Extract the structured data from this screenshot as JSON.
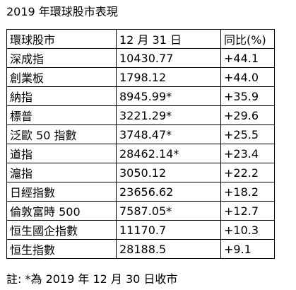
{
  "title": "2019 年環球股市表現",
  "table": {
    "headers": [
      "環球股市",
      "12 月 31 日",
      "同比(%)"
    ],
    "rows": [
      {
        "name": "深成指",
        "close": "10430.77",
        "change": "+44.1"
      },
      {
        "name": "創業板",
        "close": "1798.12",
        "change": "+44.0"
      },
      {
        "name": "納指",
        "close": "8945.99*",
        "change": "+35.9"
      },
      {
        "name": "標普",
        "close": "3221.29*",
        "change": "+29.6"
      },
      {
        "name": "泛歐 50 指數",
        "close": "3748.47*",
        "change": "+25.5"
      },
      {
        "name": "道指",
        "close": "28462.14*",
        "change": "+23.4"
      },
      {
        "name": "滬指",
        "close": "3050.12",
        "change": "+22.2"
      },
      {
        "name": "日經指數",
        "close": "23656.62",
        "change": "+18.2"
      },
      {
        "name": "倫敦富時 500",
        "close": "7587.05*",
        "change": "+12.7"
      },
      {
        "name": "恒生國企指數",
        "close": "11170.7",
        "change": "+10.3"
      },
      {
        "name": "恒生指數",
        "close": "28188.5",
        "change": "+9.1"
      }
    ]
  },
  "note": "註: *為 2019 年 12 月 30 日收市"
}
